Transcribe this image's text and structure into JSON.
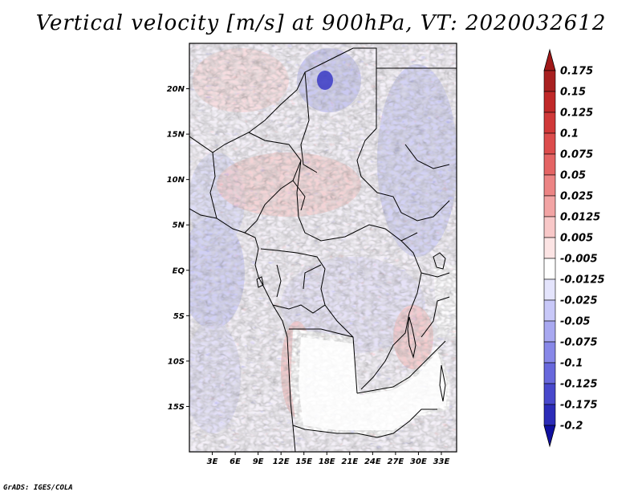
{
  "title": "Vertical velocity [m/s] at 900hPa, VT: 2020032612",
  "credit": "GrADS: IGES/COLA",
  "map": {
    "lon_range": [
      0,
      35
    ],
    "lat_range": [
      -20,
      25
    ],
    "lat_ticks": [
      {
        "value": 20,
        "label": "20N"
      },
      {
        "value": 15,
        "label": "15N"
      },
      {
        "value": 10,
        "label": "10N"
      },
      {
        "value": 5,
        "label": "5N"
      },
      {
        "value": 0,
        "label": "EQ"
      },
      {
        "value": -5,
        "label": "5S"
      },
      {
        "value": -10,
        "label": "10S"
      },
      {
        "value": -15,
        "label": "15S"
      }
    ],
    "lon_ticks": [
      {
        "value": 3,
        "label": "3E"
      },
      {
        "value": 6,
        "label": "6E"
      },
      {
        "value": 9,
        "label": "9E"
      },
      {
        "value": 12,
        "label": "12E"
      },
      {
        "value": 15,
        "label": "15E"
      },
      {
        "value": 18,
        "label": "18E"
      },
      {
        "value": 21,
        "label": "21E"
      },
      {
        "value": 24,
        "label": "24E"
      },
      {
        "value": 27,
        "label": "27E"
      },
      {
        "value": 30,
        "label": "30E"
      },
      {
        "value": 33,
        "label": "33E"
      }
    ]
  },
  "colorbar": {
    "levels": [
      {
        "label": "0.175",
        "color": "#a82020"
      },
      {
        "label": "0.15",
        "color": "#c02828"
      },
      {
        "label": "0.125",
        "color": "#d03838"
      },
      {
        "label": "0.1",
        "color": "#dc4c4c"
      },
      {
        "label": "0.075",
        "color": "#e46464"
      },
      {
        "label": "0.05",
        "color": "#ec8484"
      },
      {
        "label": "0.025",
        "color": "#f2a4a4"
      },
      {
        "label": "0.0125",
        "color": "#f8c8c8"
      },
      {
        "label": "0.005",
        "color": "#fce4e4"
      },
      {
        "label": "-0.005",
        "color": "#ffffff"
      },
      {
        "label": "-0.0125",
        "color": "#e4e4fc"
      },
      {
        "label": "-0.025",
        "color": "#c8c8f8"
      },
      {
        "label": "-0.05",
        "color": "#a8a8f0"
      },
      {
        "label": "-0.075",
        "color": "#8888e8"
      },
      {
        "label": "-0.1",
        "color": "#6868dc"
      },
      {
        "label": "-0.125",
        "color": "#4848cc"
      },
      {
        "label": "-0.175",
        "color": "#2c2cb8"
      },
      {
        "label": "-0.2",
        "color": "#1818a0"
      }
    ],
    "top_color": "#a01818",
    "bottom_color": "#1010a0"
  }
}
